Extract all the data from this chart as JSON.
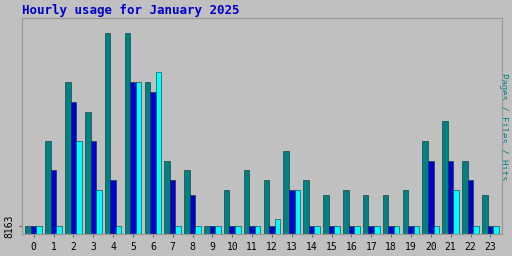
{
  "title": "Hourly usage for January 2025",
  "title_color": "#0000cc",
  "title_fontsize": 9,
  "ylabel_right": "Pages / Files / Hits",
  "ylabel_right_color": "#008080",
  "background_color": "#c0c0c0",
  "plot_bg_color": "#c0c0c0",
  "hours": [
    0,
    1,
    2,
    3,
    4,
    5,
    6,
    7,
    8,
    9,
    10,
    11,
    12,
    13,
    14,
    15,
    16,
    17,
    18,
    19,
    20,
    21,
    22,
    23
  ],
  "pages": [
    8163,
    8163,
    8250,
    8200,
    8163,
    8310,
    8320,
    8163,
    8163,
    8163,
    8163,
    8163,
    8170,
    8200,
    8163,
    8163,
    8163,
    8163,
    8163,
    8163,
    8163,
    8200,
    8163,
    8163
  ],
  "files": [
    8163,
    8220,
    8290,
    8250,
    8210,
    8310,
    8300,
    8210,
    8195,
    8163,
    8163,
    8163,
    8163,
    8200,
    8163,
    8163,
    8163,
    8163,
    8163,
    8163,
    8230,
    8230,
    8210,
    8163
  ],
  "hits": [
    8163,
    8250,
    8310,
    8280,
    8360,
    8360,
    8310,
    8230,
    8220,
    8163,
    8200,
    8220,
    8210,
    8240,
    8210,
    8195,
    8200,
    8195,
    8195,
    8200,
    8250,
    8270,
    8230,
    8195
  ],
  "pages_color": "#00ffff",
  "files_color": "#0000cc",
  "hits_color": "#008080",
  "bar_edge_color": "#003333",
  "ylim_min": 8155,
  "ylim_max": 8375,
  "xlim_min": -0.6,
  "xlim_max": 23.6,
  "tick_label_size": 7,
  "bar_width": 0.28
}
